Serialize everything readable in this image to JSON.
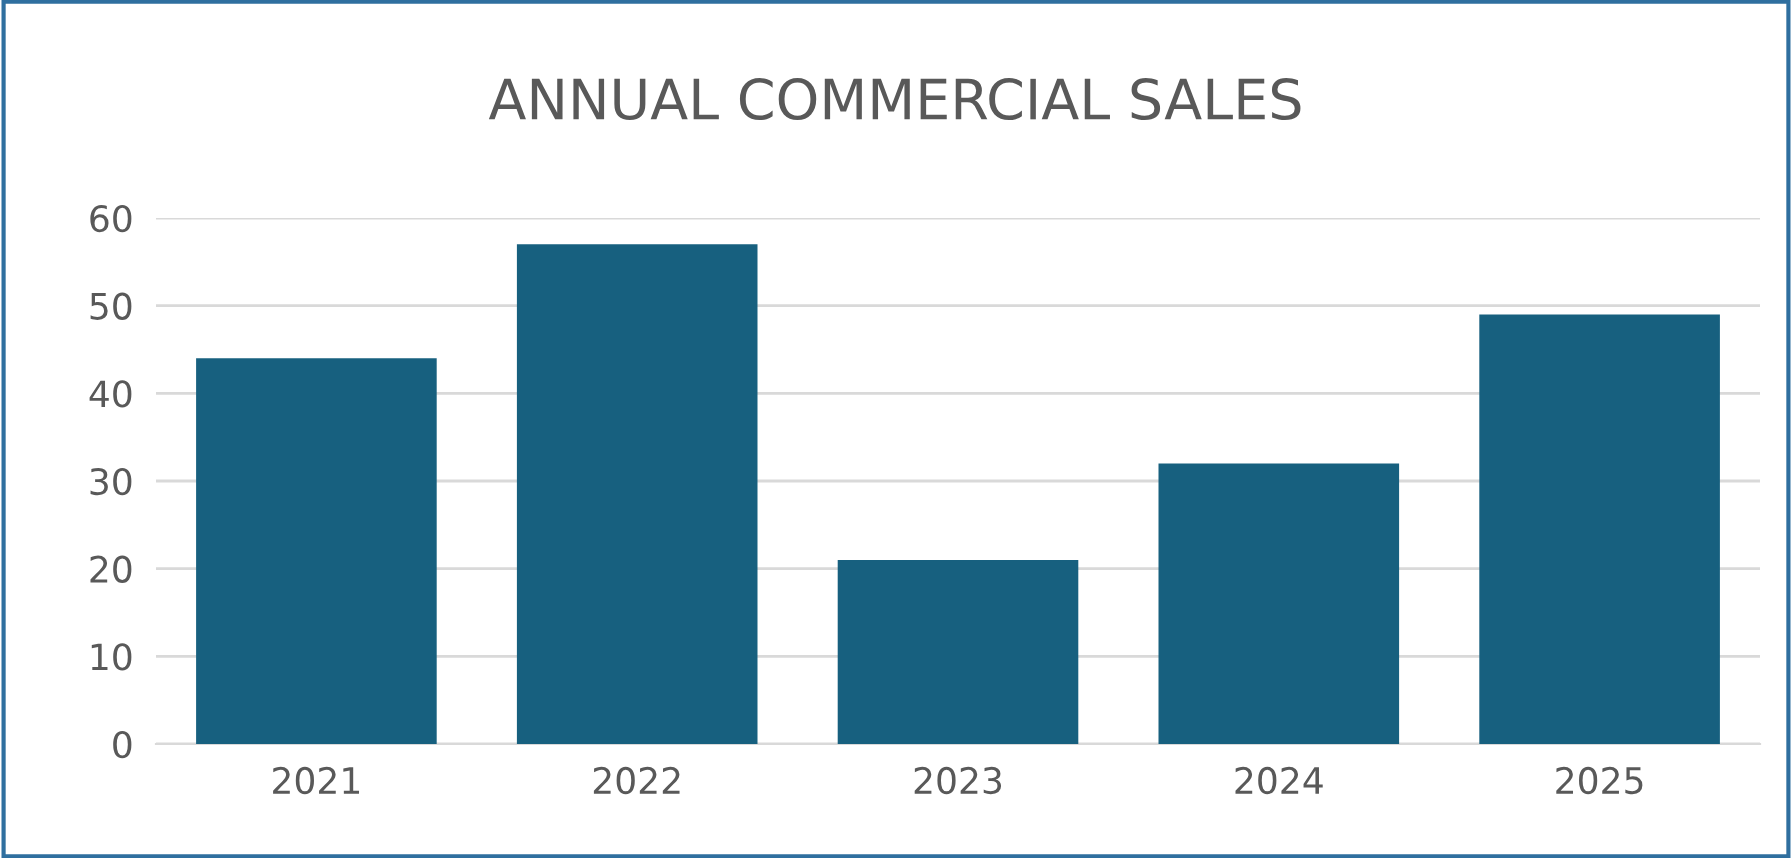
{
  "chart_data": {
    "type": "bar",
    "title": "ANNUAL COMMERCIAL SALES",
    "categories": [
      "2021",
      "2022",
      "2023",
      "2024",
      "2025"
    ],
    "values": [
      44,
      57,
      21,
      32,
      49
    ],
    "color": "#17607f",
    "ylim": [
      0,
      60
    ],
    "yticks": [
      0,
      10,
      20,
      30,
      40,
      50,
      60
    ],
    "grid": "y"
  }
}
